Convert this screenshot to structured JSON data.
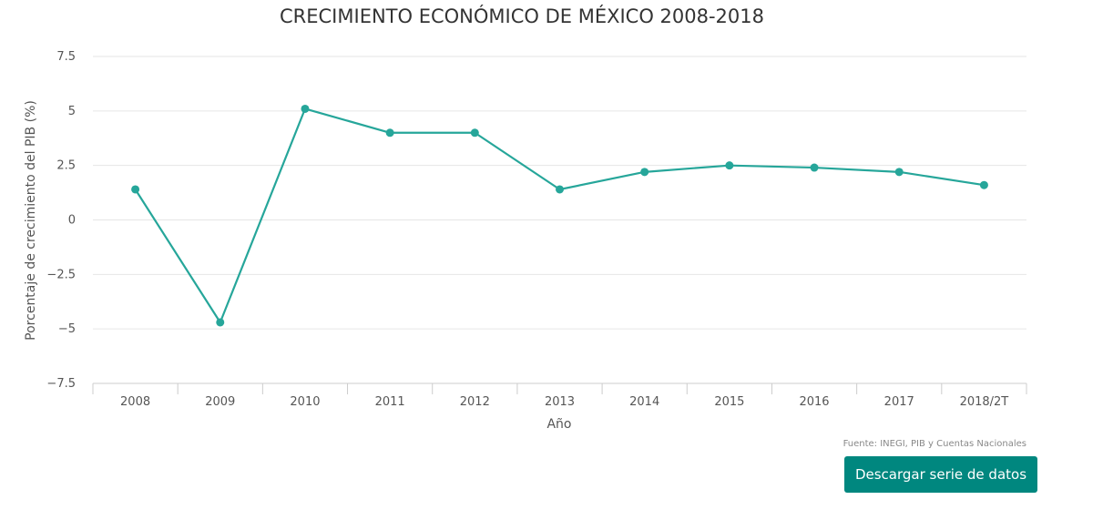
{
  "chart_data": {
    "type": "line",
    "title": "CRECIMIENTO ECONÓMICO DE MÉXICO 2008-2018",
    "xlabel": "Año",
    "ylabel": "Porcentaje de crecimiento del PIB (%)",
    "categories": [
      "2008",
      "2009",
      "2010",
      "2011",
      "2012",
      "2013",
      "2014",
      "2015",
      "2016",
      "2017",
      "2018/2T"
    ],
    "series": [
      {
        "values": [
          1.4,
          -4.7,
          5.1,
          4.0,
          4.0,
          1.4,
          2.2,
          2.5,
          2.4,
          2.2,
          1.6
        ]
      }
    ],
    "ylim": [
      -7.5,
      7.5
    ],
    "yticks": [
      7.5,
      5,
      2.5,
      0,
      -2.5,
      -5,
      -7.5
    ],
    "ytick_labels": [
      "7.5",
      "5",
      "2.5",
      "0",
      "−2.5",
      "−5",
      "−7.5"
    ],
    "grid": true,
    "legend": "none",
    "color": "#26a69a"
  },
  "source": "Fuente: INEGI, PIB y Cuentas Nacionales",
  "download_button": {
    "label": "Descargar serie de datos"
  },
  "colors": {
    "button": "#00877f",
    "line": "#26a69a",
    "grid": "#e6e6e6"
  }
}
